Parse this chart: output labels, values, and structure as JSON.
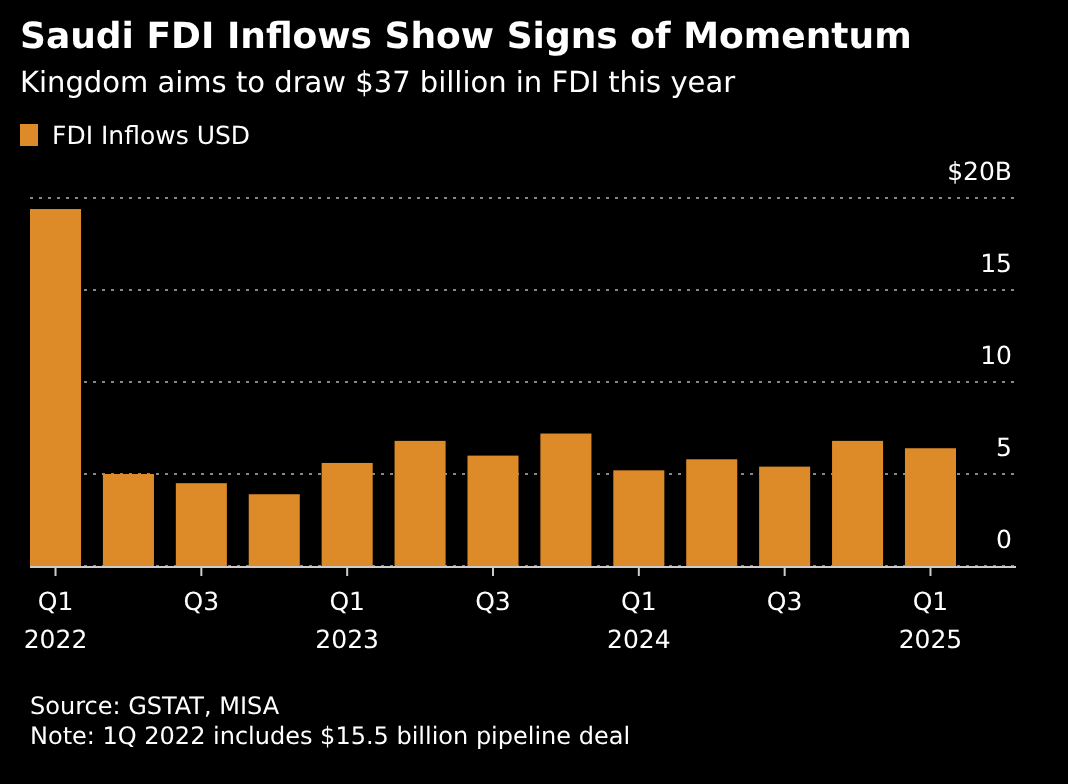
{
  "chart_data": {
    "type": "bar",
    "title": "Saudi FDI Inflows Show Signs of Momentum",
    "subtitle": "Kingdom aims to draw $37 billion in FDI this year",
    "categories": [
      "Q1\n2022",
      null,
      "Q3",
      null,
      "Q1\n2023",
      null,
      "Q3",
      null,
      "Q1\n2024",
      null,
      "Q3",
      null,
      "Q1\n2025"
    ],
    "series": [
      {
        "name": "FDI Inflows USD",
        "color": "#dd8a28",
        "values": [
          19.4,
          5.0,
          4.5,
          3.9,
          5.6,
          6.8,
          6.0,
          7.2,
          5.2,
          5.8,
          5.4,
          6.8,
          6.4
        ]
      }
    ],
    "ylim": [
      0,
      20
    ],
    "yticks": [
      0,
      5,
      10,
      15,
      {
        "value": 20,
        "label": "$20B"
      }
    ],
    "grid": "y",
    "legend": "top left",
    "annotations": [
      "Source: GSTAT, MISA",
      "Note: 1Q 2022 includes $15.5 billion pipeline deal"
    ]
  }
}
